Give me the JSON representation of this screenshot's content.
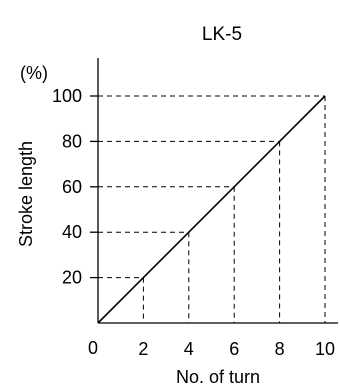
{
  "chart_data": {
    "type": "line",
    "title": "LK-5",
    "xlabel": "No. of turn",
    "ylabel": "Stroke length",
    "yunit": "(%)",
    "xlim": [
      0,
      10
    ],
    "ylim": [
      0,
      100
    ],
    "x_origin_label": "0",
    "x_ticks": [
      "2",
      "4",
      "6",
      "8",
      "10"
    ],
    "y_ticks": [
      "20",
      "40",
      "60",
      "80",
      "100"
    ],
    "series": [
      {
        "x": [
          0,
          2,
          4,
          6,
          8,
          10
        ],
        "y": [
          0,
          20,
          40,
          60,
          80,
          100
        ]
      }
    ],
    "guide_lines": "dashed",
    "grid": false,
    "legend": "none",
    "colors": {
      "line": "#000000",
      "axis": "#000000",
      "background": "#ffffff"
    }
  }
}
